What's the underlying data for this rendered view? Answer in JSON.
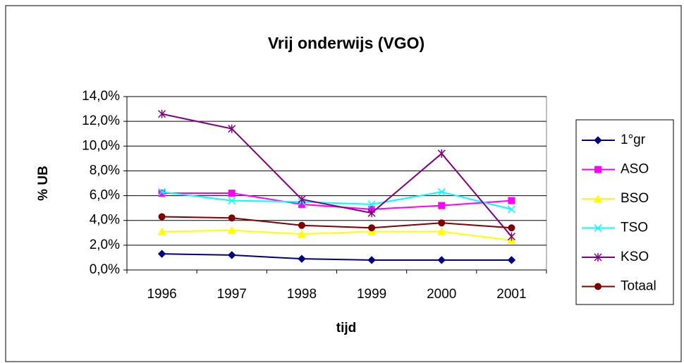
{
  "chart_data": {
    "type": "line",
    "title": "Vrij onderwijs (VGO)",
    "x_label": "tijd",
    "y_label": "% UB",
    "categories": [
      "1996",
      "1997",
      "1998",
      "1999",
      "2000",
      "2001"
    ],
    "series": [
      {
        "name": "1°gr",
        "color": "#000080",
        "marker": "diamond",
        "values": [
          1.3,
          1.2,
          0.9,
          0.8,
          0.8,
          0.8
        ]
      },
      {
        "name": "ASO",
        "color": "#ff00ff",
        "marker": "square",
        "values": [
          6.2,
          6.2,
          5.3,
          4.9,
          5.2,
          5.6
        ]
      },
      {
        "name": "BSO",
        "color": "#ffff00",
        "marker": "triangle",
        "values": [
          3.1,
          3.2,
          2.9,
          3.1,
          3.1,
          2.4
        ]
      },
      {
        "name": "TSO",
        "color": "#00ffff",
        "marker": "x",
        "values": [
          6.3,
          5.6,
          5.5,
          5.3,
          6.3,
          4.9
        ]
      },
      {
        "name": "KSO",
        "color": "#800080",
        "marker": "asterisk",
        "values": [
          12.6,
          11.4,
          5.7,
          4.6,
          9.4,
          2.7
        ]
      },
      {
        "name": "Totaal",
        "color": "#800000",
        "marker": "circle",
        "values": [
          4.3,
          4.2,
          3.6,
          3.4,
          3.8,
          3.4
        ]
      }
    ],
    "ylim": [
      0,
      14
    ],
    "yticks": [
      {
        "value": 0,
        "label": "0,0%"
      },
      {
        "value": 2,
        "label": "2,0%"
      },
      {
        "value": 4,
        "label": "4,0%"
      },
      {
        "value": 6,
        "label": "6,0%"
      },
      {
        "value": 8,
        "label": "8,0%"
      },
      {
        "value": 10,
        "label": "10,0%"
      },
      {
        "value": 12,
        "label": "12,0%"
      },
      {
        "value": 14,
        "label": "14,0%"
      }
    ],
    "grid": true,
    "legend": "right"
  }
}
